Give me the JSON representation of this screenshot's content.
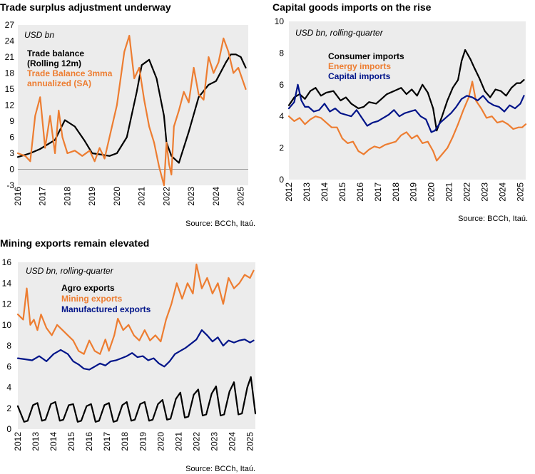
{
  "chart_data": [
    {
      "type": "line",
      "title": "Trade surplus adjustment underway",
      "unit": "USD bn",
      "source": "Source: BCCh, Itaú.",
      "ylim": [
        -3,
        27
      ],
      "yticks": [
        "-3",
        "0",
        "3",
        "6",
        "9",
        "12",
        "15",
        "18",
        "21",
        "24",
        "27"
      ],
      "xlim": [
        2016,
        2025.3
      ],
      "xticks": [
        "2016",
        "2017",
        "2018",
        "2019",
        "2020",
        "2021",
        "2022",
        "2023",
        "2024",
        "2025"
      ],
      "grid": false,
      "legend_position": "top-left",
      "series": [
        {
          "name": "Trade balance (Rolling 12m)",
          "color": "#000000",
          "x": [
            2016,
            2016.5,
            2016.9,
            2017.5,
            2017.9,
            2018.3,
            2018.7,
            2019.0,
            2019.3,
            2019.7,
            2020.0,
            2020.4,
            2020.8,
            2021.0,
            2021.3,
            2021.6,
            2021.9,
            2022.0,
            2022.2,
            2022.5,
            2022.9,
            2023.3,
            2023.7,
            2024.0,
            2024.4,
            2024.6,
            2024.8,
            2025.0,
            2025.2
          ],
          "y": [
            2.3,
            3.0,
            3.8,
            5.5,
            9.2,
            8.0,
            5.3,
            3.0,
            2.8,
            2.5,
            3.0,
            6.0,
            14.5,
            19.5,
            20.5,
            17.0,
            10.0,
            5.0,
            2.5,
            1.2,
            7.0,
            13.5,
            15.8,
            16.5,
            20.0,
            21.5,
            21.5,
            21.0,
            19.0
          ]
        },
        {
          "name": "Trade Balance 3mma annualized (SA)",
          "color": "#ED7D31",
          "x": [
            2016,
            2016.3,
            2016.5,
            2016.7,
            2016.9,
            2017.1,
            2017.3,
            2017.5,
            2017.65,
            2017.8,
            2018.0,
            2018.3,
            2018.6,
            2018.9,
            2019.1,
            2019.3,
            2019.5,
            2019.7,
            2020.0,
            2020.3,
            2020.5,
            2020.7,
            2020.9,
            2021.1,
            2021.3,
            2021.5,
            2021.7,
            2021.9,
            2022.0,
            2022.1,
            2022.2,
            2022.3,
            2022.5,
            2022.7,
            2022.9,
            2023.1,
            2023.3,
            2023.5,
            2023.7,
            2023.9,
            2024.1,
            2024.3,
            2024.5,
            2024.7,
            2024.9,
            2025.05,
            2025.2
          ],
          "y": [
            3.0,
            2.5,
            1.5,
            10.0,
            13.5,
            4.0,
            10.0,
            3.0,
            11.0,
            6.0,
            3.0,
            3.5,
            2.5,
            3.5,
            1.5,
            4.0,
            2.0,
            6.0,
            12.0,
            22.0,
            25.0,
            17.0,
            19.0,
            13.0,
            8.0,
            5.0,
            0.5,
            -3.0,
            5.0,
            1.0,
            -1.0,
            8.0,
            11.0,
            14.5,
            12.5,
            19.0,
            14.0,
            13.0,
            21.0,
            18.0,
            20.0,
            24.5,
            22.0,
            18.0,
            19.0,
            17.0,
            15.0
          ]
        }
      ]
    },
    {
      "type": "line",
      "title": "Capital goods imports on the rise",
      "unit": "USD bn, rolling-quarter",
      "source": "Source: BCCh, Itaú.",
      "ylim": [
        0,
        10
      ],
      "yticks": [
        "0",
        "2",
        "4",
        "6",
        "8",
        "10"
      ],
      "xlim": [
        2012,
        2025.3
      ],
      "xticks": [
        "2012",
        "2013",
        "2014",
        "2015",
        "2016",
        "2017",
        "2018",
        "2019",
        "2020",
        "2021",
        "2022",
        "2023",
        "2024",
        "2025"
      ],
      "grid": false,
      "legend_position": "top-left",
      "series": [
        {
          "name": "Consumer imports",
          "color": "#000000",
          "x": [
            2012,
            2012.3,
            2012.6,
            2012.9,
            2013.2,
            2013.5,
            2013.8,
            2014.1,
            2014.5,
            2014.9,
            2015.2,
            2015.5,
            2015.9,
            2016.2,
            2016.5,
            2016.9,
            2017.2,
            2017.5,
            2017.9,
            2018.3,
            2018.6,
            2018.9,
            2019.2,
            2019.5,
            2019.8,
            2020.1,
            2020.3,
            2020.6,
            2020.9,
            2021.2,
            2021.5,
            2021.7,
            2021.9,
            2022.2,
            2022.4,
            2022.7,
            2023.0,
            2023.3,
            2023.6,
            2023.9,
            2024.2,
            2024.5,
            2024.8,
            2025.0,
            2025.2
          ],
          "y": [
            4.7,
            5.2,
            5.4,
            5.1,
            5.6,
            5.8,
            5.3,
            5.5,
            5.6,
            5.0,
            5.2,
            4.8,
            4.5,
            4.6,
            4.9,
            4.8,
            5.1,
            5.4,
            5.6,
            5.8,
            5.4,
            5.7,
            5.3,
            6.0,
            5.5,
            4.5,
            3.1,
            4.0,
            5.0,
            5.8,
            6.3,
            7.5,
            8.2,
            7.6,
            7.1,
            6.4,
            5.6,
            5.2,
            5.7,
            5.6,
            5.3,
            5.8,
            6.1,
            6.1,
            6.3
          ]
        },
        {
          "name": "Energy imports",
          "color": "#ED7D31",
          "x": [
            2012,
            2012.3,
            2012.6,
            2012.9,
            2013.2,
            2013.5,
            2013.8,
            2014.1,
            2014.4,
            2014.7,
            2015.0,
            2015.3,
            2015.6,
            2015.9,
            2016.2,
            2016.5,
            2016.8,
            2017.1,
            2017.4,
            2017.7,
            2018.0,
            2018.3,
            2018.6,
            2018.9,
            2019.2,
            2019.5,
            2019.8,
            2020.1,
            2020.3,
            2020.6,
            2020.9,
            2021.2,
            2021.5,
            2021.8,
            2022.1,
            2022.3,
            2022.5,
            2022.8,
            2023.1,
            2023.4,
            2023.7,
            2024.0,
            2024.3,
            2024.6,
            2024.9,
            2025.1,
            2025.3
          ],
          "y": [
            4.0,
            3.7,
            3.9,
            3.5,
            3.8,
            4.0,
            3.9,
            3.6,
            3.3,
            3.3,
            2.6,
            2.3,
            2.4,
            1.8,
            1.6,
            1.9,
            2.1,
            2.0,
            2.2,
            2.3,
            2.4,
            2.8,
            3.0,
            2.6,
            2.8,
            2.3,
            2.4,
            1.8,
            1.2,
            1.6,
            2.0,
            2.7,
            3.5,
            4.4,
            5.2,
            6.2,
            5.0,
            4.5,
            3.9,
            4.0,
            3.6,
            3.7,
            3.5,
            3.2,
            3.3,
            3.3,
            3.5
          ]
        },
        {
          "name": "Capital imports",
          "color": "#001489",
          "x": [
            2012,
            2012.3,
            2012.5,
            2012.7,
            2012.9,
            2013.1,
            2013.4,
            2013.7,
            2014.0,
            2014.3,
            2014.6,
            2014.9,
            2015.2,
            2015.5,
            2015.8,
            2016.1,
            2016.4,
            2016.7,
            2017.0,
            2017.3,
            2017.6,
            2017.9,
            2018.2,
            2018.5,
            2018.8,
            2019.1,
            2019.4,
            2019.7,
            2020.0,
            2020.2,
            2020.5,
            2020.8,
            2021.1,
            2021.4,
            2021.7,
            2022.0,
            2022.3,
            2022.6,
            2022.9,
            2023.2,
            2023.5,
            2023.8,
            2024.1,
            2024.4,
            2024.7,
            2025.0,
            2025.2
          ],
          "y": [
            4.5,
            4.9,
            6.0,
            5.0,
            4.6,
            4.6,
            4.3,
            4.4,
            4.8,
            4.3,
            4.5,
            4.2,
            4.1,
            4.0,
            4.4,
            3.9,
            3.4,
            3.6,
            3.7,
            3.9,
            4.1,
            4.4,
            4.0,
            4.2,
            4.3,
            4.4,
            4.0,
            3.8,
            3.0,
            3.1,
            3.6,
            3.9,
            4.2,
            4.6,
            5.1,
            5.3,
            5.2,
            5.0,
            5.3,
            4.9,
            4.7,
            4.6,
            4.3,
            4.7,
            4.5,
            4.8,
            5.3
          ]
        }
      ]
    },
    {
      "type": "line",
      "title": "Mining exports remain elevated",
      "unit": "USD bn, rolling-quarter",
      "source": "Source: BCCh, Itaú.",
      "ylim": [
        0,
        16
      ],
      "yticks": [
        "0",
        "2",
        "4",
        "6",
        "8",
        "10",
        "12",
        "14",
        "16"
      ],
      "xlim": [
        2012,
        2025.3
      ],
      "xticks": [
        "2012",
        "2013",
        "2014",
        "2015",
        "2016",
        "2017",
        "2018",
        "2019",
        "2020",
        "2021",
        "2022",
        "2023",
        "2024",
        "2025"
      ],
      "grid": false,
      "legend_position": "top-left",
      "series": [
        {
          "name": "Agro exports",
          "color": "#000000",
          "x": [
            2012,
            2012.35,
            2012.55,
            2012.85,
            2013.1,
            2013.35,
            2013.55,
            2013.85,
            2014.1,
            2014.35,
            2014.55,
            2014.85,
            2015.1,
            2015.35,
            2015.55,
            2015.85,
            2016.1,
            2016.35,
            2016.55,
            2016.85,
            2017.1,
            2017.35,
            2017.55,
            2017.85,
            2018.1,
            2018.35,
            2018.55,
            2018.85,
            2019.1,
            2019.35,
            2019.55,
            2019.85,
            2020.1,
            2020.35,
            2020.55,
            2020.85,
            2021.1,
            2021.35,
            2021.55,
            2021.85,
            2022.1,
            2022.35,
            2022.55,
            2022.85,
            2023.1,
            2023.35,
            2023.55,
            2023.85,
            2024.1,
            2024.35,
            2024.55,
            2024.85,
            2025.05,
            2025.3
          ],
          "y": [
            2.2,
            0.7,
            0.8,
            2.3,
            2.5,
            0.8,
            0.9,
            2.4,
            2.6,
            0.8,
            0.9,
            2.3,
            2.4,
            0.7,
            0.8,
            2.2,
            2.4,
            0.7,
            0.8,
            2.3,
            2.5,
            0.7,
            0.8,
            2.3,
            2.6,
            0.8,
            0.9,
            2.4,
            2.6,
            0.8,
            0.9,
            2.4,
            2.8,
            0.9,
            1.0,
            2.9,
            3.5,
            1.1,
            1.2,
            3.3,
            3.8,
            1.3,
            1.4,
            3.4,
            4.1,
            1.3,
            1.4,
            3.6,
            4.5,
            1.4,
            1.5,
            4.0,
            5.0,
            1.5
          ]
        },
        {
          "name": "Mining exports",
          "color": "#ED7D31",
          "x": [
            2012,
            2012.3,
            2012.5,
            2012.7,
            2012.9,
            2013.1,
            2013.3,
            2013.6,
            2013.9,
            2014.2,
            2014.5,
            2014.8,
            2015.1,
            2015.4,
            2015.7,
            2016.0,
            2016.3,
            2016.6,
            2016.9,
            2017.1,
            2017.4,
            2017.6,
            2017.9,
            2018.2,
            2018.5,
            2018.8,
            2019.1,
            2019.4,
            2019.7,
            2020.0,
            2020.3,
            2020.6,
            2020.9,
            2021.2,
            2021.5,
            2021.8,
            2022.0,
            2022.3,
            2022.6,
            2022.9,
            2023.2,
            2023.5,
            2023.8,
            2024.1,
            2024.4,
            2024.7,
            2025.0,
            2025.2
          ],
          "y": [
            11.0,
            10.5,
            13.5,
            10.0,
            10.5,
            9.5,
            11.0,
            9.7,
            9.0,
            10.0,
            9.5,
            9.0,
            8.5,
            7.5,
            7.2,
            8.5,
            7.5,
            7.2,
            8.6,
            7.5,
            9.0,
            10.6,
            9.5,
            10.0,
            9.0,
            8.5,
            9.5,
            8.5,
            9.0,
            8.4,
            10.5,
            12.0,
            14.0,
            12.5,
            14.0,
            13.0,
            15.8,
            13.5,
            14.5,
            13.0,
            14.0,
            12.0,
            14.5,
            13.5,
            14.0,
            14.8,
            14.5,
            15.2
          ]
        },
        {
          "name": "Manufactured exports",
          "color": "#001489",
          "x": [
            2012,
            2012.4,
            2012.8,
            2013.2,
            2013.6,
            2014.0,
            2014.4,
            2014.8,
            2015.1,
            2015.4,
            2015.7,
            2016.0,
            2016.3,
            2016.6,
            2016.9,
            2017.2,
            2017.5,
            2017.8,
            2018.1,
            2018.4,
            2018.7,
            2019.0,
            2019.3,
            2019.6,
            2019.9,
            2020.2,
            2020.5,
            2020.8,
            2021.1,
            2021.4,
            2021.7,
            2022.0,
            2022.3,
            2022.6,
            2022.9,
            2023.2,
            2023.5,
            2023.8,
            2024.1,
            2024.4,
            2024.7,
            2025.0,
            2025.2
          ],
          "y": [
            6.8,
            6.7,
            6.6,
            7.0,
            6.5,
            7.2,
            7.6,
            7.2,
            6.5,
            6.2,
            5.8,
            5.7,
            6.0,
            6.3,
            6.1,
            6.5,
            6.6,
            6.8,
            7.0,
            7.3,
            6.9,
            7.0,
            6.6,
            6.8,
            6.3,
            6.0,
            6.5,
            7.2,
            7.5,
            7.8,
            8.2,
            8.6,
            9.5,
            9.0,
            8.4,
            8.8,
            8.0,
            8.5,
            8.3,
            8.5,
            8.6,
            8.3,
            8.5
          ]
        }
      ]
    }
  ]
}
